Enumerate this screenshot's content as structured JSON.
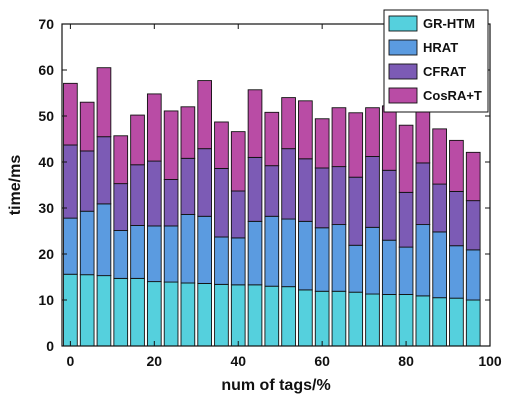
{
  "chart_data": {
    "type": "bar",
    "stacked": true,
    "xlabel": "num of tags/%",
    "ylabel": "time/ms",
    "xlim": [
      -2,
      100
    ],
    "ylim": [
      0,
      70
    ],
    "xticks": [
      0,
      20,
      40,
      60,
      80,
      100
    ],
    "yticks": [
      0,
      10,
      20,
      30,
      40,
      50,
      60,
      70
    ],
    "legend_position": "top-right",
    "x": [
      0,
      4,
      8,
      12,
      16,
      20,
      24,
      28,
      32,
      36,
      40,
      44,
      48,
      52,
      56,
      60,
      64,
      68,
      72,
      76,
      80,
      84,
      88,
      92,
      96
    ],
    "series": [
      {
        "name": "GR-HTM",
        "color": "#55D0DD",
        "values": [
          15.6,
          15.5,
          15.3,
          14.7,
          14.7,
          14.0,
          13.9,
          13.7,
          13.6,
          13.4,
          13.3,
          13.3,
          13.0,
          12.9,
          12.2,
          11.9,
          11.9,
          11.7,
          11.3,
          11.2,
          11.2,
          10.9,
          10.5,
          10.4,
          10.0
        ]
      },
      {
        "name": "HRAT",
        "color": "#5B9BE0",
        "values": [
          12.2,
          13.8,
          15.6,
          10.4,
          11.5,
          12.1,
          12.2,
          14.9,
          14.6,
          10.3,
          10.2,
          13.8,
          15.2,
          14.7,
          14.9,
          13.8,
          14.5,
          10.2,
          14.5,
          11.8,
          10.3,
          15.5,
          14.3,
          11.4,
          10.9
        ]
      },
      {
        "name": "CFRAT",
        "color": "#7C5BB5",
        "values": [
          15.9,
          13.1,
          14.6,
          10.2,
          13.2,
          14.1,
          10.1,
          12.2,
          14.7,
          14.9,
          10.2,
          13.9,
          11.0,
          15.3,
          13.6,
          13.0,
          12.6,
          14.8,
          15.4,
          15.2,
          11.9,
          13.4,
          10.4,
          11.8,
          10.7
        ]
      },
      {
        "name": "CosRA+T",
        "color": "#B94CA5",
        "values": [
          13.4,
          10.6,
          15.0,
          10.4,
          10.8,
          14.6,
          14.9,
          11.2,
          14.8,
          10.1,
          12.9,
          14.7,
          11.6,
          11.1,
          12.6,
          10.7,
          12.8,
          14.0,
          10.6,
          14.0,
          14.6,
          13.7,
          12.0,
          11.1,
          10.5
        ]
      }
    ]
  }
}
